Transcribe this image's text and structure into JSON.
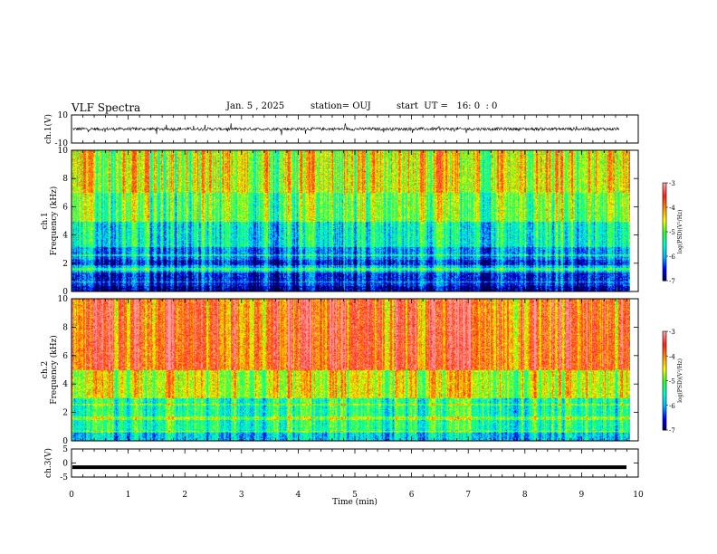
{
  "header": {
    "title": "VLF Spectra",
    "date": "Jan. 5 , 2025",
    "station": "station= OUJ",
    "start": "start  UT =   16: 0  : 0"
  },
  "chart_data": [
    {
      "type": "line",
      "id": "ch1-waveform",
      "ylabel": "ch.1(V)",
      "ylim": [
        -10,
        10
      ],
      "yticks": [
        "10",
        "-10"
      ],
      "xlim": [
        0,
        10
      ],
      "baseline": 0,
      "color": "#000000"
    },
    {
      "type": "heatmap",
      "id": "ch1-spectrogram",
      "ylabel": "ch.1\nFrequency (kHz)",
      "ylim": [
        0,
        10
      ],
      "yticks": [
        "0",
        "2",
        "4",
        "6",
        "8",
        "10"
      ],
      "xlim": [
        0,
        9.85
      ],
      "colorbar": {
        "label": "log(PSD)(V²/Hz)",
        "range": [
          -7,
          -3
        ],
        "ticks": [
          "-3",
          "-4",
          "-5",
          "-6",
          "-7"
        ]
      }
    },
    {
      "type": "heatmap",
      "id": "ch2-spectrogram",
      "ylabel": "ch.2\nFrequency (kHz)",
      "ylim": [
        0,
        10
      ],
      "yticks": [
        "0",
        "2",
        "4",
        "6",
        "8",
        "10"
      ],
      "xlim": [
        0,
        9.85
      ],
      "colorbar": {
        "label": "log(PSD)(V²/Hz)",
        "range": [
          -7,
          -3
        ],
        "ticks": [
          "-3",
          "-4",
          "-5",
          "-6",
          "-7"
        ]
      }
    },
    {
      "type": "line",
      "id": "ch3-waveform",
      "ylabel": "ch.3(V)",
      "ylim": [
        -5,
        5
      ],
      "yticks": [
        "5",
        "0",
        "-5"
      ],
      "xlim": [
        0,
        9.85
      ],
      "values_constant": -1.5,
      "color": "#000000"
    }
  ],
  "xaxis": {
    "label": "Time  (min)",
    "range": [
      0,
      10
    ],
    "ticks": [
      "0",
      "1",
      "2",
      "3",
      "4",
      "5",
      "6",
      "7",
      "8",
      "9",
      "10"
    ]
  },
  "colormap": [
    "#00004a",
    "#0000ff",
    "#00b8ff",
    "#00ffd0",
    "#30ff30",
    "#ffff00",
    "#ff9000",
    "#ff2020",
    "#ffa0a0"
  ]
}
